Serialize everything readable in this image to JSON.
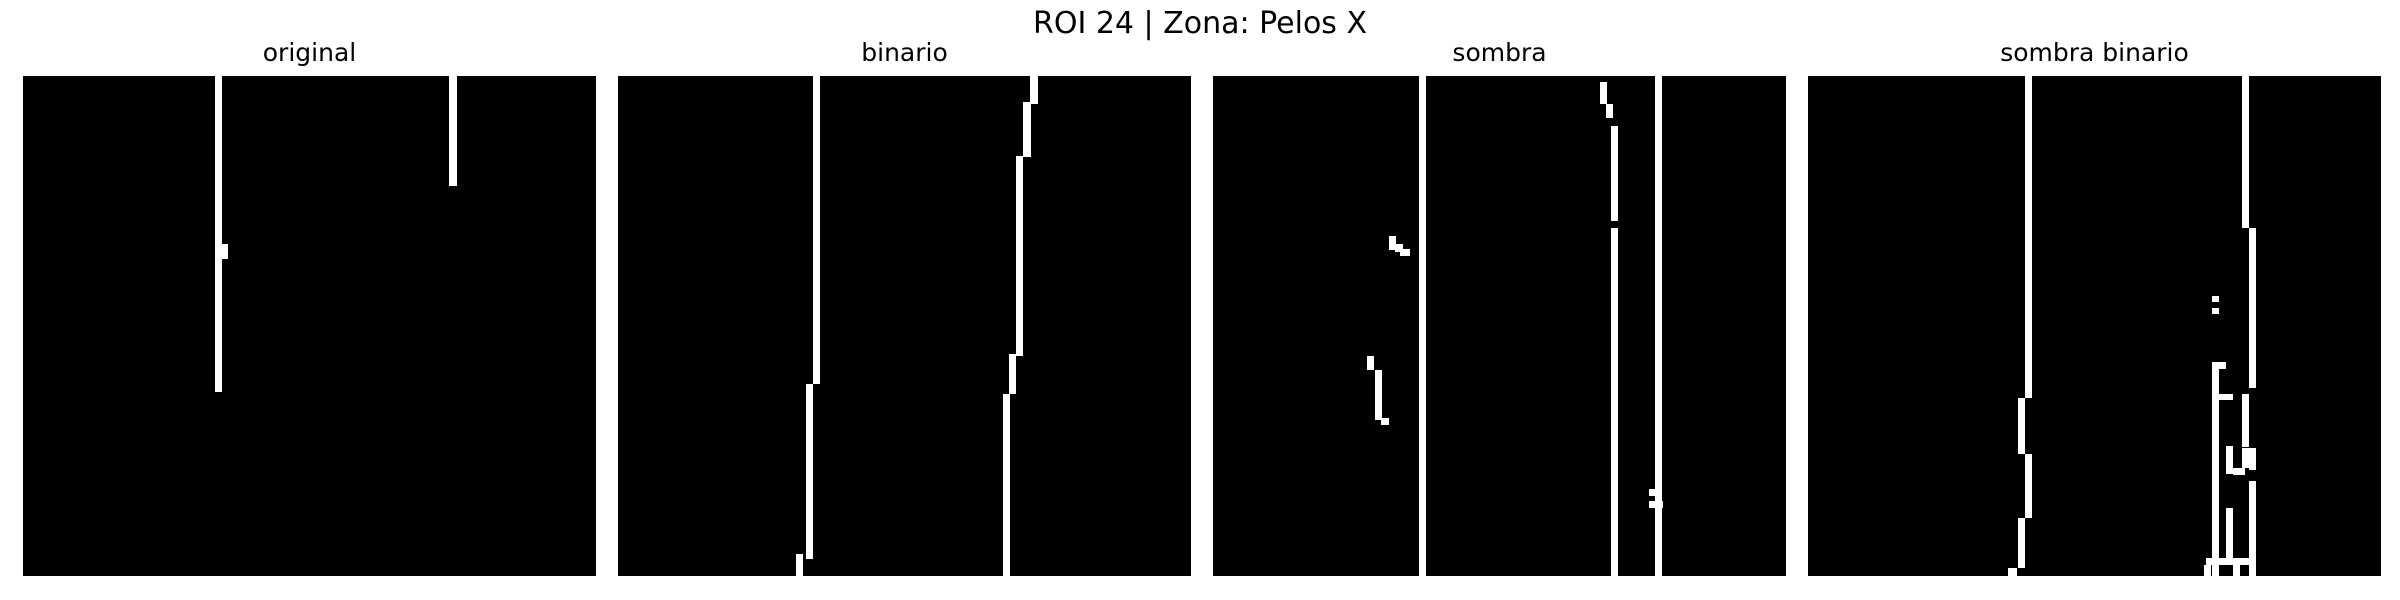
{
  "figure": {
    "title": "ROI 24 | Zona:  Pelos X"
  },
  "panels": [
    {
      "title": "original"
    },
    {
      "title": "binario"
    },
    {
      "title": "sombra"
    },
    {
      "title": "sombra binario"
    }
  ],
  "colors": {
    "background": "#000000",
    "foreground": "#ffffff"
  }
}
